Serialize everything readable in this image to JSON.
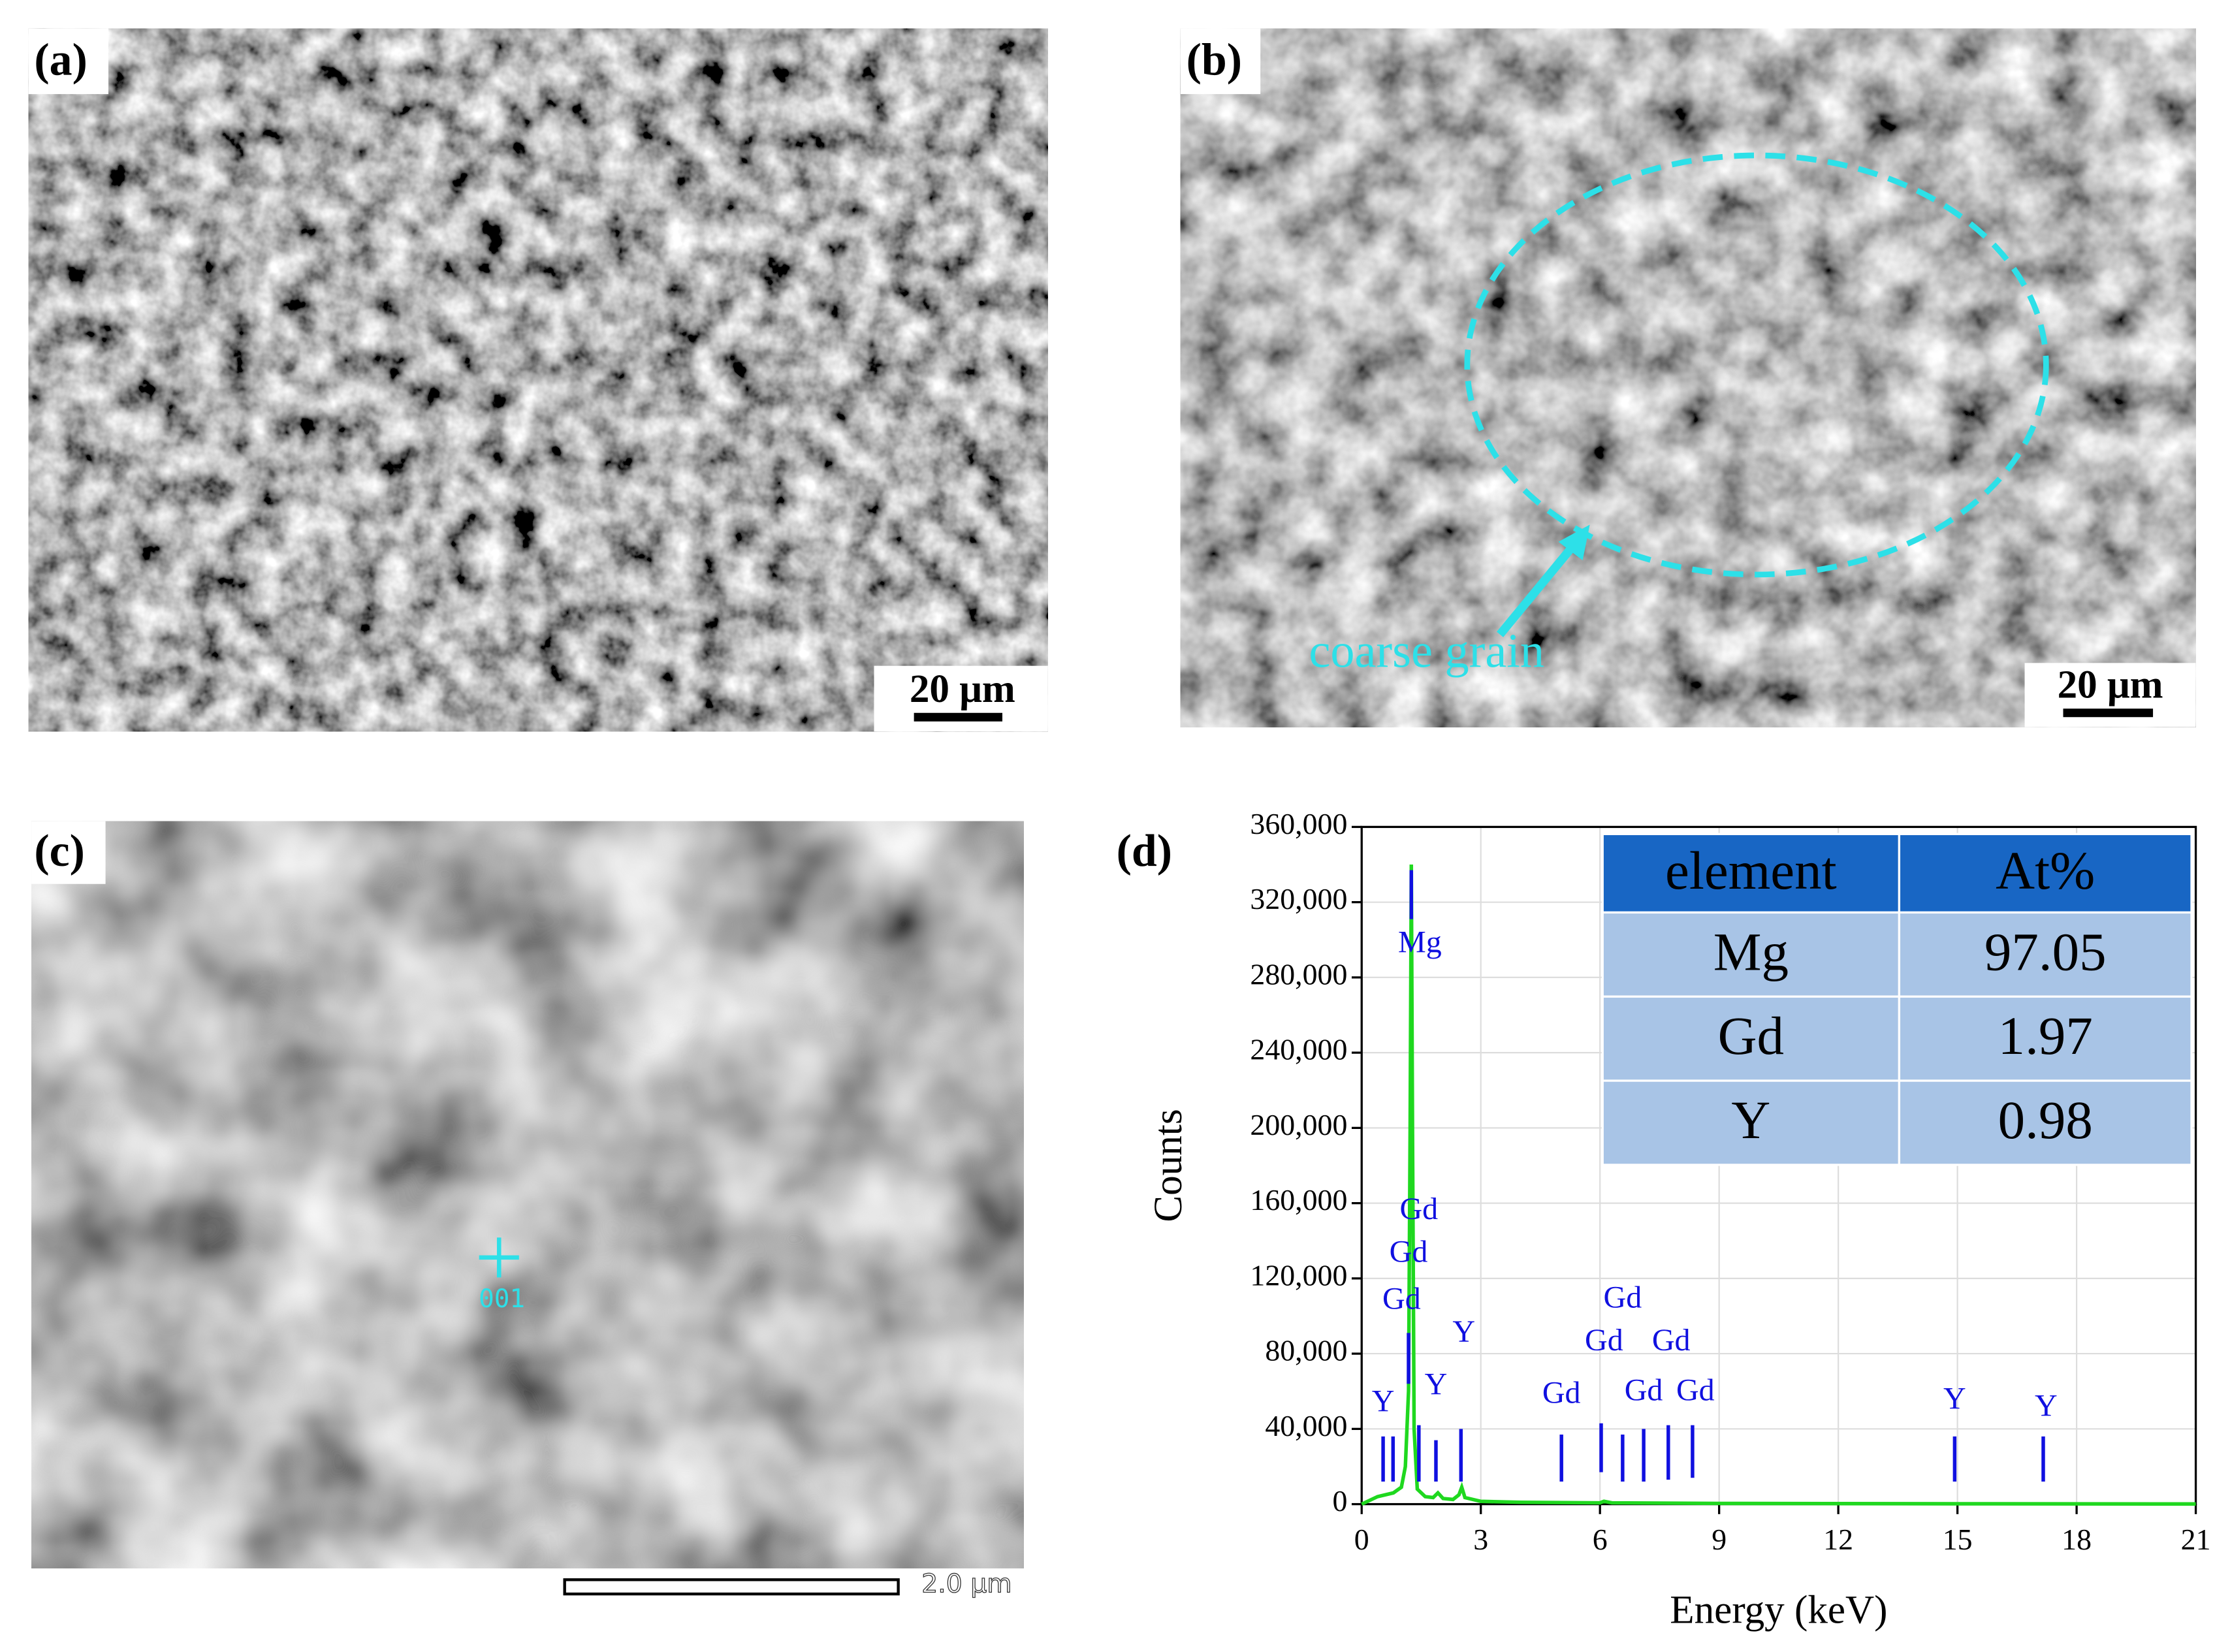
{
  "panels": [
    {
      "label": "(a)",
      "scale_bar": "20 μm"
    },
    {
      "label": "(b)",
      "scale_bar": "20 μm",
      "annotation": "coarse grain"
    },
    {
      "label": "(c)",
      "marker": "001",
      "scale_bar": "2.0 μm"
    },
    {
      "label": "(d)"
    }
  ],
  "chart_data": {
    "type": "line",
    "x_label": "Energy (keV)",
    "y_label": "Counts",
    "xlim": [
      0,
      21
    ],
    "xticks": [
      0,
      3,
      6,
      9,
      12,
      15,
      18,
      21
    ],
    "ylim": [
      0,
      360000
    ],
    "yticks": [
      0,
      {
        "value": 40000,
        "label": "40,000"
      },
      {
        "value": 80000,
        "label": "80,000"
      },
      {
        "value": 120000,
        "label": "120,000"
      },
      {
        "value": 160000,
        "label": "160,000"
      },
      {
        "value": 200000,
        "label": "200,000"
      },
      {
        "value": 240000,
        "label": "240,000"
      },
      {
        "value": 280000,
        "label": "280,000"
      },
      {
        "value": 320000,
        "label": "320,000"
      },
      {
        "value": 360000,
        "label": "360,000"
      }
    ],
    "grid": true,
    "series": [
      {
        "color": "#1fd81f",
        "x": [
          0,
          0.2,
          0.4,
          0.6,
          0.8,
          1.0,
          1.1,
          1.18,
          1.22,
          1.25,
          1.28,
          1.32,
          1.4,
          1.6,
          1.8,
          1.92,
          2.05,
          2.3,
          2.45,
          2.52,
          2.6,
          3,
          4,
          6,
          6.1,
          6.3,
          9,
          12,
          15,
          18,
          21
        ],
        "values": [
          0,
          2000,
          4000,
          5000,
          6000,
          9000,
          20000,
          60000,
          200000,
          340000,
          200000,
          40000,
          8000,
          4000,
          3500,
          6000,
          3000,
          2500,
          5000,
          9000,
          3500,
          1500,
          1000,
          700,
          1500,
          700,
          400,
          300,
          200,
          150,
          100
        ]
      }
    ],
    "markers": {
      "color": "#1010e0",
      "items": [
        {
          "label": "Y",
          "energy": 0.54,
          "top": 36000,
          "bottom": 12000
        },
        {
          "label": "Gd",
          "energy": 0.79,
          "top": 36000,
          "bottom": 12000
        },
        {
          "label": "Gd",
          "energy": 1.18,
          "top": 91000,
          "bottom": 64000
        },
        {
          "label": "Mg",
          "energy": 1.25,
          "top": 337000,
          "bottom": 311000
        },
        {
          "label": "Gd",
          "energy": 1.44,
          "top": 42000,
          "bottom": 12000
        },
        {
          "label": "Y",
          "energy": 1.87,
          "top": 34000,
          "bottom": 12000
        },
        {
          "label": "Y",
          "energy": 2.5,
          "top": 40000,
          "bottom": 12000
        },
        {
          "label": "Gd",
          "energy": 5.03,
          "top": 37000,
          "bottom": 12000
        },
        {
          "label": "Gd",
          "energy": 6.03,
          "top": 43000,
          "bottom": 17000
        },
        {
          "label": "Gd",
          "energy": 6.57,
          "top": 37000,
          "bottom": 12000
        },
        {
          "label": "Gd",
          "energy": 7.1,
          "top": 40000,
          "bottom": 12000
        },
        {
          "label": "Gd",
          "energy": 7.72,
          "top": 42000,
          "bottom": 13000
        },
        {
          "label": "Gd",
          "energy": 8.33,
          "top": 42000,
          "bottom": 14000
        },
        {
          "label": "Y",
          "energy": 14.93,
          "top": 36000,
          "bottom": 12000
        },
        {
          "label": "Y",
          "energy": 17.16,
          "top": 36000,
          "bottom": 12000
        }
      ]
    },
    "table": {
      "header": [
        "element",
        "At%"
      ],
      "rows": [
        [
          "Mg",
          "97.05"
        ],
        [
          "Gd",
          "1.97"
        ],
        [
          "Y",
          "0.98"
        ]
      ]
    }
  }
}
